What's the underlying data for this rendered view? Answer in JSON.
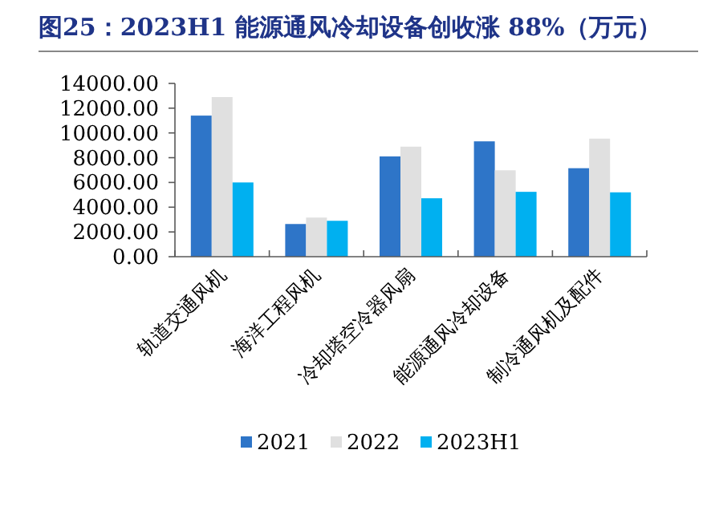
{
  "chart_data": {
    "type": "bar",
    "title": "图25：2023H1 能源通风冷却设备创收涨 88%（万元）",
    "categories": [
      "轨道交通风机",
      "海洋工程风机",
      "冷却塔空冷器风扇",
      "能源通风冷却设备",
      "制冷通风机及配件"
    ],
    "series": [
      {
        "name": "2021",
        "color": "#2e75c8",
        "values": [
          11400,
          2640,
          8100,
          9320,
          7150
        ]
      },
      {
        "name": "2022",
        "color": "#e0e0e0",
        "values": [
          12900,
          3160,
          8890,
          6980,
          9540
        ]
      },
      {
        "name": "2023H1",
        "color": "#00b0f0",
        "values": [
          6000,
          2900,
          4720,
          5240,
          5200
        ]
      }
    ],
    "ylim": [
      0,
      14000
    ],
    "yticks": [
      {
        "value": 0,
        "label": "0.00"
      },
      {
        "value": 2000,
        "label": "2000.00"
      },
      {
        "value": 4000,
        "label": "4000.00"
      },
      {
        "value": 6000,
        "label": "6000.00"
      },
      {
        "value": 8000,
        "label": "8000.00"
      },
      {
        "value": 10000,
        "label": "10000.00"
      },
      {
        "value": 12000,
        "label": "12000.00"
      },
      {
        "value": 14000,
        "label": "14000.00"
      }
    ],
    "grid": false,
    "legend": "bottom"
  }
}
